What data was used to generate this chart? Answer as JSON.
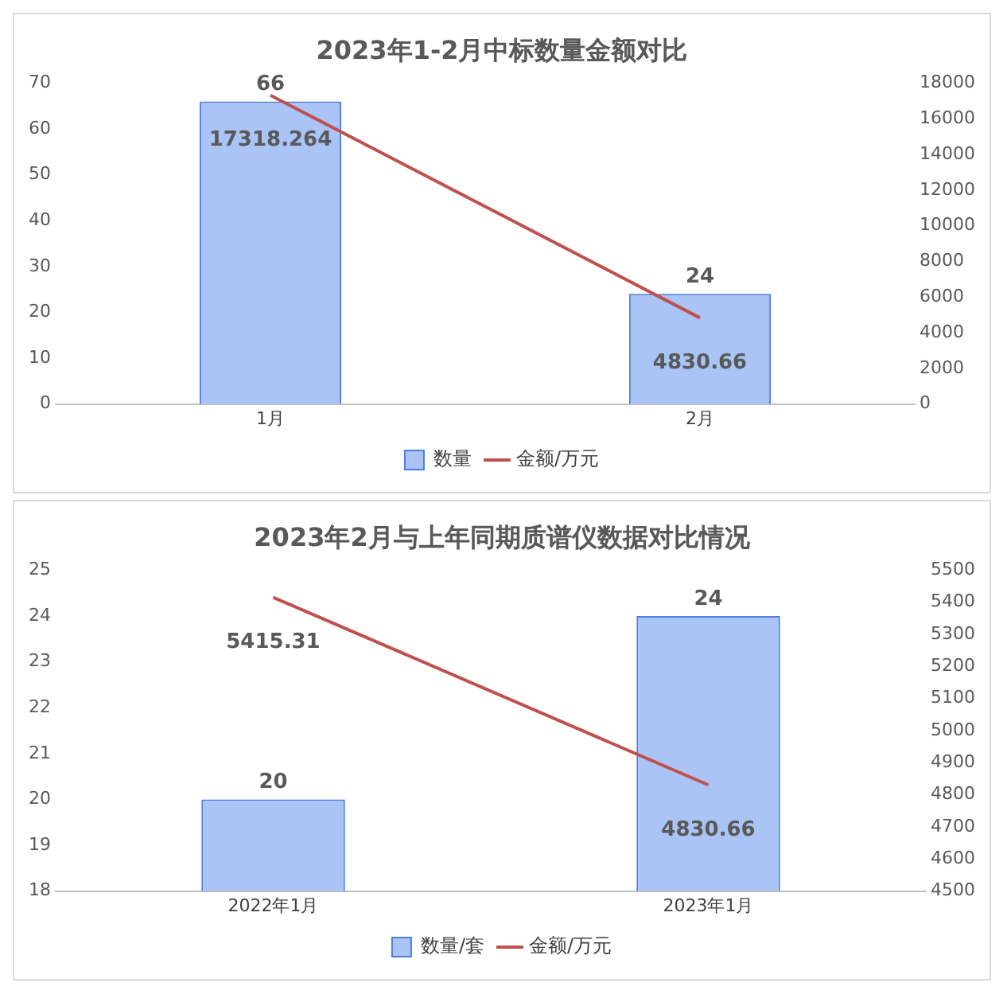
{
  "chart_data": [
    {
      "type": "bar",
      "title": "2023年1-2月中标数量金额对比",
      "categories": [
        "1月",
        "2月"
      ],
      "series": [
        {
          "name": "数量",
          "color": "#a9c4f5",
          "values": [
            66,
            24
          ]
        },
        {
          "name": "金额/万元",
          "type": "line",
          "axis": "y2",
          "color": "#c0504d",
          "values": [
            17318.264,
            4830.66
          ]
        }
      ],
      "ylim": [
        0,
        70
      ],
      "yticks": [
        0,
        10,
        20,
        30,
        40,
        50,
        60,
        70
      ],
      "y2lim": [
        0,
        18000
      ],
      "y2ticks": [
        0,
        2000,
        4000,
        6000,
        8000,
        10000,
        12000,
        14000,
        16000,
        18000
      ],
      "data_labels": true,
      "legend": "bottom",
      "marker": "none"
    },
    {
      "type": "bar",
      "title": "2023年2月与上年同期质谱仪数据对比情况",
      "categories": [
        "2022年1月",
        "2023年1月"
      ],
      "series": [
        {
          "name": "数量/套",
          "color": "#a9c4f5",
          "values": [
            20,
            24
          ]
        },
        {
          "name": "金额/万元",
          "type": "line",
          "axis": "y2",
          "color": "#c0504d",
          "values": [
            5415.31,
            4830.66
          ]
        }
      ],
      "ylim": [
        18,
        25
      ],
      "yticks": [
        18,
        19,
        20,
        21,
        22,
        23,
        24,
        25
      ],
      "y2lim": [
        4500,
        5500
      ],
      "y2ticks": [
        4500,
        4600,
        4700,
        4800,
        4900,
        5000,
        5100,
        5200,
        5300,
        5400,
        5500
      ],
      "data_labels": true,
      "legend": "bottom",
      "marker": "none"
    }
  ]
}
